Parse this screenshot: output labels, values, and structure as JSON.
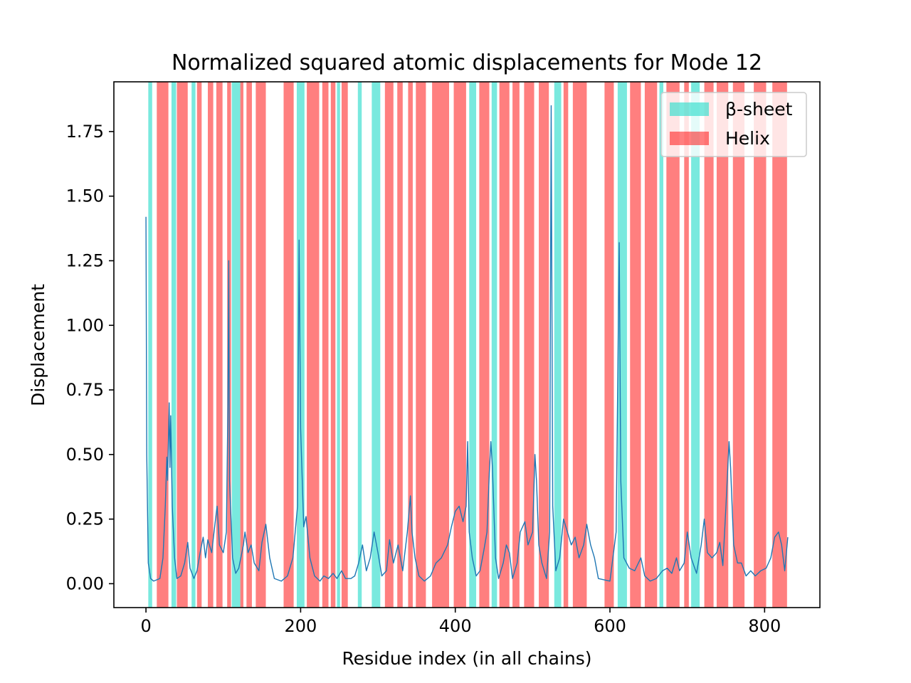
{
  "chart_data": {
    "type": "line",
    "title": "Normalized squared atomic displacements for Mode 12",
    "x_label": "Residue index (in all chains)",
    "y_label": "Displacement",
    "xlim": [
      -41.5,
      871.5
    ],
    "ylim": [
      -0.0925,
      1.9425
    ],
    "xticks": [
      0,
      200,
      400,
      600,
      800
    ],
    "yticks": [
      {
        "value": 0,
        "label": "0.00"
      },
      {
        "value": 0.25,
        "label": "0.25"
      },
      {
        "value": 0.5,
        "label": "0.50"
      },
      {
        "value": 0.75,
        "label": "0.75"
      },
      {
        "value": 1,
        "label": "1.00"
      },
      {
        "value": 1.25,
        "label": "1.25"
      },
      {
        "value": 1.5,
        "label": "1.50"
      },
      {
        "value": 1.75,
        "label": "1.75"
      }
    ],
    "legend_position": "upper-right",
    "regions": [
      {
        "name": "β-sheet",
        "color": "#40e0d0",
        "spans": [
          [
            3,
            8
          ],
          [
            33,
            39
          ],
          [
            59,
            64
          ],
          [
            111,
            122
          ],
          [
            195,
            205
          ],
          [
            247,
            251
          ],
          [
            274,
            279
          ],
          [
            292,
            303
          ],
          [
            418,
            427
          ],
          [
            447,
            454
          ],
          [
            528,
            537
          ],
          [
            610,
            622
          ],
          [
            664,
            669
          ],
          [
            705,
            716
          ]
        ]
      },
      {
        "name": "Helix",
        "color": "#ff0000",
        "spans": [
          [
            14,
            29
          ],
          [
            40,
            54
          ],
          [
            66,
            72
          ],
          [
            80,
            87
          ],
          [
            91,
            99
          ],
          [
            105,
            110
          ],
          [
            122,
            126
          ],
          [
            130,
            137
          ],
          [
            142,
            155
          ],
          [
            178,
            191
          ],
          [
            208,
            224
          ],
          [
            228,
            236
          ],
          [
            239,
            245
          ],
          [
            253,
            261
          ],
          [
            309,
            320
          ],
          [
            325,
            332
          ],
          [
            339,
            345
          ],
          [
            349,
            362
          ],
          [
            370,
            392
          ],
          [
            398,
            414
          ],
          [
            431,
            444
          ],
          [
            457,
            470
          ],
          [
            474,
            483
          ],
          [
            489,
            502
          ],
          [
            508,
            521
          ],
          [
            540,
            546
          ],
          [
            552,
            570
          ],
          [
            593,
            605
          ],
          [
            626,
            640
          ],
          [
            645,
            661
          ],
          [
            673,
            690
          ],
          [
            696,
            702
          ],
          [
            722,
            734
          ],
          [
            738,
            753
          ],
          [
            759,
            774
          ],
          [
            786,
            802
          ],
          [
            810,
            829
          ]
        ]
      }
    ],
    "line": {
      "color": "#1f77b4",
      "x": [
        0,
        1,
        3,
        6,
        10,
        18,
        22,
        25,
        27,
        28,
        30,
        31,
        32,
        34,
        37,
        40,
        45,
        50,
        54,
        57,
        62,
        66,
        70,
        74,
        77,
        80,
        85,
        88,
        92,
        95,
        100,
        104,
        106,
        107,
        108,
        112,
        116,
        120,
        126,
        128,
        132,
        136,
        140,
        146,
        150,
        155,
        160,
        166,
        175,
        183,
        190,
        196,
        198,
        200,
        204,
        207,
        212,
        218,
        225,
        230,
        236,
        242,
        247,
        253,
        258,
        265,
        270,
        275,
        280,
        285,
        290,
        295,
        300,
        305,
        311,
        315,
        320,
        326,
        332,
        338,
        342,
        344,
        348,
        353,
        360,
        368,
        375,
        382,
        390,
        395,
        400,
        405,
        410,
        414,
        416,
        418,
        422,
        427,
        432,
        437,
        441,
        444,
        446,
        448,
        452,
        456,
        462,
        466,
        470,
        474,
        480,
        484,
        490,
        494,
        500,
        503,
        505,
        508,
        512,
        518,
        522,
        524,
        526,
        530,
        535,
        540,
        545,
        550,
        555,
        560,
        566,
        570,
        575,
        580,
        585,
        600,
        608,
        612,
        614,
        618,
        625,
        632,
        640,
        645,
        652,
        660,
        668,
        674,
        680,
        686,
        690,
        696,
        700,
        705,
        712,
        718,
        722,
        726,
        732,
        738,
        742,
        746,
        750,
        754,
        756,
        760,
        765,
        770,
        776,
        782,
        788,
        795,
        802,
        808,
        813,
        818,
        822,
        826,
        830
      ],
      "values": [
        1.42,
        0.5,
        0.08,
        0.02,
        0.01,
        0.02,
        0.1,
        0.3,
        0.49,
        0.4,
        0.7,
        0.45,
        0.65,
        0.3,
        0.1,
        0.02,
        0.03,
        0.08,
        0.16,
        0.06,
        0.02,
        0.05,
        0.12,
        0.18,
        0.1,
        0.17,
        0.12,
        0.2,
        0.3,
        0.15,
        0.12,
        0.2,
        0.7,
        1.25,
        0.4,
        0.1,
        0.04,
        0.06,
        0.15,
        0.2,
        0.12,
        0.15,
        0.08,
        0.05,
        0.16,
        0.23,
        0.1,
        0.02,
        0.01,
        0.03,
        0.1,
        0.3,
        1.33,
        0.6,
        0.22,
        0.26,
        0.1,
        0.03,
        0.01,
        0.03,
        0.02,
        0.04,
        0.02,
        0.05,
        0.02,
        0.02,
        0.03,
        0.08,
        0.15,
        0.05,
        0.1,
        0.2,
        0.12,
        0.03,
        0.05,
        0.17,
        0.08,
        0.15,
        0.05,
        0.2,
        0.34,
        0.2,
        0.1,
        0.03,
        0.01,
        0.03,
        0.08,
        0.1,
        0.15,
        0.22,
        0.28,
        0.3,
        0.24,
        0.3,
        0.55,
        0.2,
        0.1,
        0.03,
        0.05,
        0.13,
        0.2,
        0.43,
        0.55,
        0.45,
        0.1,
        0.02,
        0.08,
        0.15,
        0.12,
        0.02,
        0.08,
        0.2,
        0.24,
        0.15,
        0.2,
        0.5,
        0.4,
        0.15,
        0.08,
        0.02,
        0.2,
        1.85,
        0.3,
        0.05,
        0.1,
        0.25,
        0.2,
        0.15,
        0.18,
        0.1,
        0.15,
        0.23,
        0.15,
        0.1,
        0.02,
        0.01,
        0.2,
        1.32,
        0.4,
        0.1,
        0.06,
        0.05,
        0.1,
        0.03,
        0.01,
        0.02,
        0.05,
        0.06,
        0.04,
        0.1,
        0.05,
        0.08,
        0.2,
        0.1,
        0.04,
        0.15,
        0.25,
        0.12,
        0.1,
        0.12,
        0.16,
        0.07,
        0.3,
        0.55,
        0.45,
        0.15,
        0.08,
        0.08,
        0.03,
        0.05,
        0.03,
        0.05,
        0.06,
        0.1,
        0.18,
        0.2,
        0.15,
        0.05,
        0.18
      ]
    }
  }
}
